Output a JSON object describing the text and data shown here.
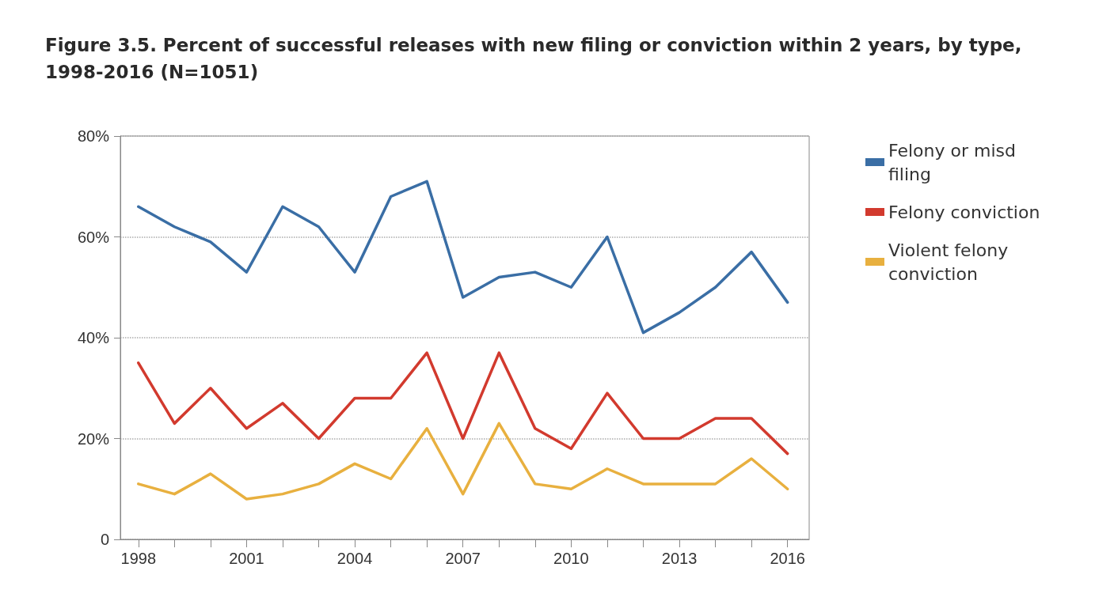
{
  "chart_data": {
    "type": "line",
    "title": "Figure 3.5. Percent of successful releases with new filing or conviction within 2 years, by type, 1998-2016 (N=1051)",
    "x": [
      1998,
      1999,
      2000,
      2001,
      2002,
      2003,
      2004,
      2005,
      2006,
      2007,
      2008,
      2009,
      2010,
      2011,
      2012,
      2013,
      2014,
      2015,
      2016
    ],
    "series": [
      {
        "name": "Felony or misd filing",
        "color": "#3a6ea5",
        "values": [
          66,
          62,
          59,
          53,
          66,
          62,
          53,
          68,
          71,
          48,
          52,
          53,
          50,
          60,
          41,
          45,
          50,
          57,
          47
        ]
      },
      {
        "name": "Felony conviction",
        "color": "#d23a2e",
        "values": [
          35,
          23,
          30,
          22,
          27,
          20,
          28,
          28,
          37,
          20,
          37,
          22,
          18,
          29,
          20,
          20,
          24,
          24,
          17
        ]
      },
      {
        "name": "Violent felony conviction",
        "color": "#e8b03f",
        "values": [
          11,
          9,
          13,
          8,
          9,
          11,
          15,
          12,
          22,
          9,
          23,
          11,
          10,
          14,
          11,
          11,
          11,
          16,
          10
        ]
      }
    ],
    "xlim": [
      1997.5,
      2016.6
    ],
    "xticks": [
      1998,
      {
        "value": 1999,
        "label": null
      },
      {
        "value": 2000,
        "label": null
      },
      2001,
      {
        "value": 2002,
        "label": null
      },
      {
        "value": 2003,
        "label": null
      },
      2004,
      {
        "value": 2005,
        "label": null
      },
      {
        "value": 2006,
        "label": null
      },
      2007,
      {
        "value": 2008,
        "label": null
      },
      {
        "value": 2009,
        "label": null
      },
      2010,
      {
        "value": 2011,
        "label": null
      },
      {
        "value": 2012,
        "label": null
      },
      2013,
      {
        "value": 2014,
        "label": null
      },
      {
        "value": 2015,
        "label": null
      },
      2016
    ],
    "ylim": [
      0,
      80
    ],
    "yticks": [
      0,
      {
        "value": 20,
        "label": "20%"
      },
      {
        "value": 40,
        "label": "40%"
      },
      {
        "value": 60,
        "label": "60%"
      },
      {
        "value": 80,
        "label": "80%"
      }
    ],
    "grid": "y",
    "legend": "right",
    "marker": "none",
    "line_style": "solid"
  }
}
